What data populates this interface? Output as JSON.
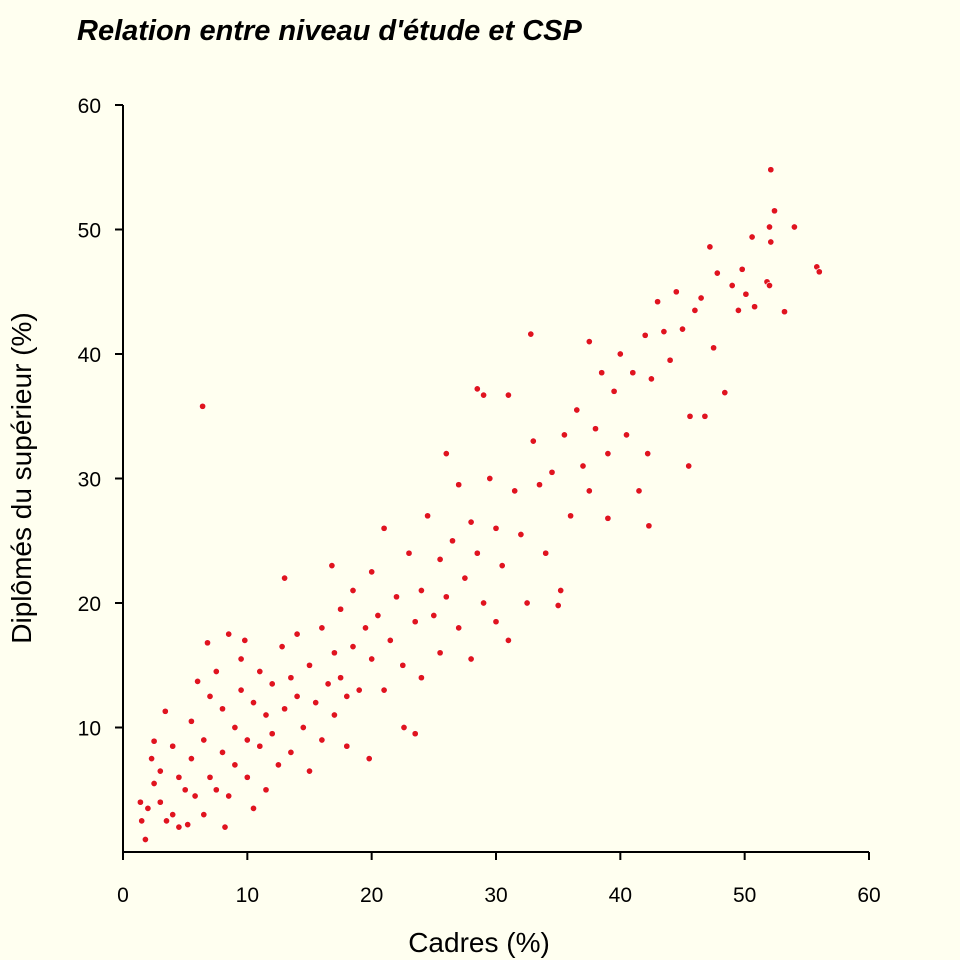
{
  "chart_data": {
    "type": "scatter",
    "title": "Relation entre niveau d'étude et CSP",
    "xlabel": "Cadres (%)",
    "ylabel": "Diplômés du supérieur (%)",
    "xlim": [
      0,
      60
    ],
    "ylim": [
      0,
      60
    ],
    "xticks": [
      "0",
      "10",
      "20",
      "30",
      "40",
      "50",
      "60"
    ],
    "yticks": [
      "10",
      "20",
      "30",
      "40",
      "50",
      "60"
    ],
    "grid": false,
    "point_color": "#e0141e",
    "point_edge_color": "#ffffff",
    "background_color": "#fffff0",
    "points": [
      [
        1.8,
        1.0
      ],
      [
        1.5,
        2.5
      ],
      [
        1.4,
        4.0
      ],
      [
        2.0,
        3.5
      ],
      [
        2.5,
        5.5
      ],
      [
        2.3,
        7.5
      ],
      [
        2.5,
        8.9
      ],
      [
        3.0,
        6.5
      ],
      [
        3.4,
        11.3
      ],
      [
        3.0,
        4.0
      ],
      [
        3.5,
        2.5
      ],
      [
        4.0,
        3.0
      ],
      [
        4.5,
        6.0
      ],
      [
        4.0,
        8.5
      ],
      [
        4.5,
        2.0
      ],
      [
        5.2,
        2.2
      ],
      [
        5.0,
        5.0
      ],
      [
        5.5,
        7.5
      ],
      [
        5.5,
        10.5
      ],
      [
        6.0,
        13.7
      ],
      [
        5.8,
        4.5
      ],
      [
        6.5,
        3.0
      ],
      [
        6.5,
        9.0
      ],
      [
        6.8,
        16.8
      ],
      [
        6.4,
        35.8
      ],
      [
        7.0,
        6.0
      ],
      [
        7.0,
        12.5
      ],
      [
        7.5,
        5.0
      ],
      [
        7.5,
        14.5
      ],
      [
        8.0,
        8.0
      ],
      [
        8.0,
        11.5
      ],
      [
        8.2,
        2.0
      ],
      [
        8.5,
        17.5
      ],
      [
        8.5,
        4.5
      ],
      [
        9.0,
        10.0
      ],
      [
        9.0,
        7.0
      ],
      [
        9.5,
        13.0
      ],
      [
        9.5,
        15.5
      ],
      [
        9.8,
        17.0
      ],
      [
        10.0,
        9.0
      ],
      [
        10.0,
        6.0
      ],
      [
        10.5,
        12.0
      ],
      [
        10.5,
        3.5
      ],
      [
        11.0,
        14.5
      ],
      [
        11.0,
        8.5
      ],
      [
        11.5,
        11.0
      ],
      [
        11.5,
        5.0
      ],
      [
        12.0,
        13.5
      ],
      [
        12.0,
        9.5
      ],
      [
        12.5,
        7.0
      ],
      [
        12.8,
        16.5
      ],
      [
        13.0,
        22.0
      ],
      [
        13.0,
        11.5
      ],
      [
        13.5,
        14.0
      ],
      [
        13.5,
        8.0
      ],
      [
        14.0,
        12.5
      ],
      [
        14.0,
        17.5
      ],
      [
        14.5,
        10.0
      ],
      [
        15.0,
        15.0
      ],
      [
        15.0,
        6.5
      ],
      [
        15.5,
        12.0
      ],
      [
        16.0,
        18.0
      ],
      [
        16.0,
        9.0
      ],
      [
        16.5,
        13.5
      ],
      [
        16.8,
        23.0
      ],
      [
        17.0,
        16.0
      ],
      [
        17.0,
        11.0
      ],
      [
        17.5,
        19.5
      ],
      [
        17.5,
        14.0
      ],
      [
        18.0,
        12.5
      ],
      [
        18.0,
        8.5
      ],
      [
        18.5,
        21.0
      ],
      [
        18.5,
        16.5
      ],
      [
        19.0,
        13.0
      ],
      [
        19.5,
        18.0
      ],
      [
        19.8,
        7.5
      ],
      [
        20.0,
        15.5
      ],
      [
        20.0,
        22.5
      ],
      [
        20.5,
        19.0
      ],
      [
        21.0,
        13.0
      ],
      [
        21.0,
        26.0
      ],
      [
        21.5,
        17.0
      ],
      [
        22.0,
        20.5
      ],
      [
        22.5,
        15.0
      ],
      [
        22.6,
        10.0
      ],
      [
        23.0,
        24.0
      ],
      [
        23.5,
        18.5
      ],
      [
        23.5,
        9.5
      ],
      [
        24.0,
        21.0
      ],
      [
        24.0,
        14.0
      ],
      [
        24.5,
        27.0
      ],
      [
        25.0,
        19.0
      ],
      [
        25.5,
        23.5
      ],
      [
        25.5,
        16.0
      ],
      [
        26.0,
        32.0
      ],
      [
        26.0,
        20.5
      ],
      [
        26.5,
        25.0
      ],
      [
        27.0,
        18.0
      ],
      [
        27.0,
        29.5
      ],
      [
        27.5,
        22.0
      ],
      [
        28.0,
        26.5
      ],
      [
        28.0,
        15.5
      ],
      [
        28.5,
        37.2
      ],
      [
        28.5,
        24.0
      ],
      [
        29.0,
        20.0
      ],
      [
        29.0,
        36.7
      ],
      [
        29.5,
        30.0
      ],
      [
        30.0,
        26.0
      ],
      [
        30.0,
        18.5
      ],
      [
        30.5,
        23.0
      ],
      [
        31.0,
        36.7
      ],
      [
        31.0,
        17.0
      ],
      [
        31.5,
        29.0
      ],
      [
        32.0,
        25.5
      ],
      [
        32.5,
        20.0
      ],
      [
        32.8,
        41.6
      ],
      [
        33.0,
        33.0
      ],
      [
        33.5,
        29.5
      ],
      [
        34.0,
        24.0
      ],
      [
        34.5,
        30.5
      ],
      [
        35.0,
        19.8
      ],
      [
        35.2,
        21.0
      ],
      [
        35.5,
        33.5
      ],
      [
        36.0,
        27.0
      ],
      [
        36.5,
        35.5
      ],
      [
        37.0,
        31.0
      ],
      [
        37.5,
        29.0
      ],
      [
        37.5,
        41.0
      ],
      [
        38.0,
        34.0
      ],
      [
        38.5,
        38.5
      ],
      [
        39.0,
        32.0
      ],
      [
        39.0,
        26.8
      ],
      [
        39.5,
        37.0
      ],
      [
        40.0,
        40.0
      ],
      [
        40.5,
        33.5
      ],
      [
        41.0,
        38.5
      ],
      [
        41.5,
        29.0
      ],
      [
        42.0,
        41.5
      ],
      [
        42.2,
        32.0
      ],
      [
        42.3,
        26.2
      ],
      [
        42.5,
        38.0
      ],
      [
        43.0,
        44.2
      ],
      [
        43.5,
        41.8
      ],
      [
        44.0,
        39.5
      ],
      [
        44.5,
        45.0
      ],
      [
        45.0,
        42.0
      ],
      [
        45.5,
        31.0
      ],
      [
        45.6,
        35.0
      ],
      [
        46.0,
        43.5
      ],
      [
        46.5,
        44.5
      ],
      [
        46.8,
        35.0
      ],
      [
        47.2,
        48.6
      ],
      [
        47.5,
        40.5
      ],
      [
        47.8,
        46.5
      ],
      [
        48.4,
        36.9
      ],
      [
        49.0,
        45.5
      ],
      [
        49.5,
        43.5
      ],
      [
        49.8,
        46.8
      ],
      [
        50.1,
        44.8
      ],
      [
        50.6,
        49.4
      ],
      [
        50.8,
        43.8
      ],
      [
        51.8,
        45.8
      ],
      [
        52.0,
        50.2
      ],
      [
        52.0,
        45.5
      ],
      [
        52.1,
        49.0
      ],
      [
        52.1,
        54.8
      ],
      [
        52.4,
        51.5
      ],
      [
        53.2,
        43.4
      ],
      [
        54.0,
        50.2
      ],
      [
        55.8,
        47.0
      ],
      [
        56.0,
        46.6
      ]
    ]
  }
}
